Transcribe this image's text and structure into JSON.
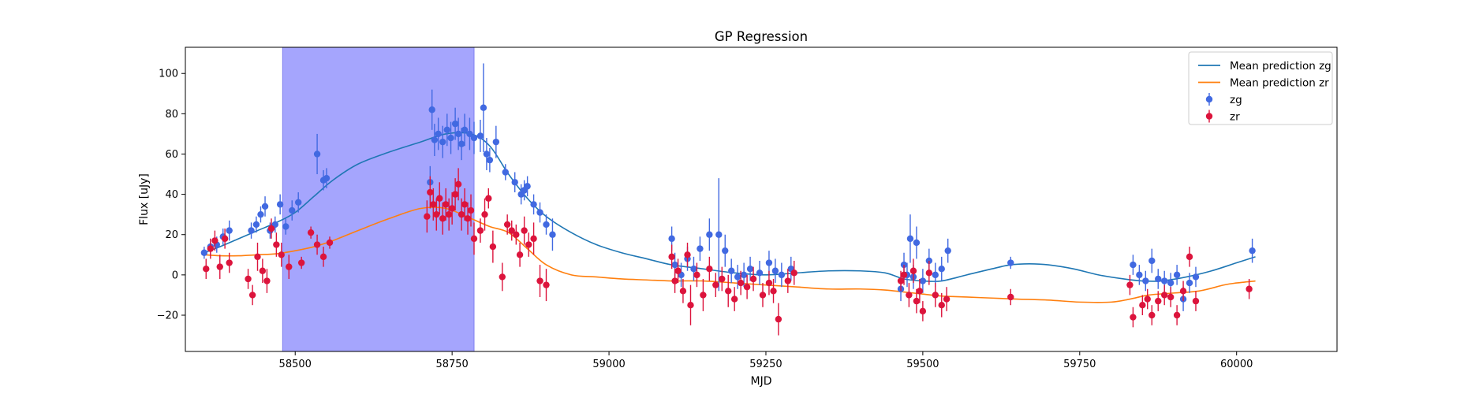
{
  "chart_data": {
    "type": "scatter",
    "title": "GP Regression",
    "xlabel": "MJD",
    "ylabel": "Flux [uJy]",
    "xlim": [
      58325,
      60160
    ],
    "ylim": [
      -38,
      113
    ],
    "xticks": [
      58500,
      58750,
      59000,
      59250,
      59500,
      59750,
      60000
    ],
    "yticks": [
      -20,
      0,
      20,
      40,
      60,
      80,
      100
    ],
    "grid": false,
    "legend_position": "upper-right",
    "highlight_span": {
      "x_start": 58480,
      "x_end": 58785,
      "color": "#a5a5fd"
    },
    "series": [
      {
        "name": "Mean prediction zg",
        "kind": "line",
        "color": "#1f77b4",
        "x": [
          58355,
          58380,
          58410,
          58440,
          58470,
          58500,
          58530,
          58560,
          58600,
          58650,
          58700,
          58740,
          58780,
          58810,
          58840,
          58870,
          58900,
          58940,
          58980,
          59020,
          59060,
          59100,
          59150,
          59200,
          59250,
          59300,
          59350,
          59400,
          59440,
          59470,
          59500,
          59530,
          59570,
          59610,
          59640,
          59670,
          59700,
          59740,
          59780,
          59820,
          59850,
          59880,
          59920,
          59960,
          60000,
          60030
        ],
        "y": [
          11,
          14,
          18,
          22,
          26,
          31,
          39,
          47,
          55,
          61,
          66,
          70,
          70,
          64,
          50,
          38,
          29,
          21,
          15,
          11,
          8,
          5,
          3,
          1,
          0,
          1,
          2,
          2,
          1,
          -2,
          -3,
          -3,
          0,
          3,
          5,
          5.5,
          5,
          3,
          0,
          -2,
          -3,
          -3,
          -1,
          2,
          6,
          9
        ]
      },
      {
        "name": "Mean prediction zr",
        "kind": "line",
        "color": "#ff7f0e",
        "x": [
          58355,
          58380,
          58410,
          58440,
          58470,
          58500,
          58530,
          58560,
          58600,
          58650,
          58700,
          58740,
          58780,
          58810,
          58840,
          58870,
          58900,
          58940,
          58980,
          59020,
          59060,
          59100,
          59150,
          59200,
          59250,
          59300,
          59350,
          59400,
          59440,
          59470,
          59500,
          59530,
          59570,
          59610,
          59650,
          59700,
          59750,
          59800,
          59830,
          59860,
          59900,
          59940,
          59980,
          60000,
          60030
        ],
        "y": [
          10,
          9.5,
          9.5,
          10,
          10.5,
          12,
          14,
          17,
          22,
          28,
          33,
          33,
          28,
          24,
          21,
          13,
          5,
          0,
          -1,
          -2,
          -2.5,
          -3,
          -3,
          -4,
          -5,
          -6,
          -7,
          -7,
          -7.5,
          -8.5,
          -9.5,
          -10.5,
          -11,
          -11.5,
          -12,
          -12.5,
          -13.5,
          -13.5,
          -12,
          -10,
          -9,
          -8,
          -5,
          -4,
          -3
        ]
      },
      {
        "name": "zg",
        "kind": "errorbar",
        "color": "#4169e1",
        "x": [
          58355,
          58365,
          58375,
          58385,
          58395,
          58430,
          58438,
          58445,
          58452,
          58460,
          58468,
          58476,
          58485,
          58495,
          58505,
          58535,
          58545,
          58550,
          58715,
          58718,
          58722,
          58728,
          58735,
          58742,
          58748,
          58755,
          58760,
          58765,
          58770,
          58778,
          58785,
          58795,
          58800,
          58805,
          58810,
          58820,
          58835,
          58850,
          58860,
          58865,
          58870,
          58880,
          58890,
          58900,
          58910,
          59100,
          59105,
          59115,
          59125,
          59135,
          59145,
          59160,
          59175,
          59185,
          59195,
          59205,
          59215,
          59225,
          59240,
          59255,
          59265,
          59275,
          59290,
          59465,
          59470,
          59475,
          59480,
          59485,
          59490,
          59500,
          59510,
          59520,
          59530,
          59540,
          59640,
          59835,
          59845,
          59855,
          59865,
          59875,
          59885,
          59895,
          59905,
          59915,
          59925,
          59935,
          60025
        ],
        "y": [
          11,
          14,
          15,
          19,
          22,
          22,
          25,
          30,
          34,
          22,
          25,
          35,
          24,
          32,
          36,
          60,
          47,
          48,
          46,
          82,
          67,
          70,
          66,
          72,
          68,
          75,
          70,
          65,
          72,
          70,
          68,
          69,
          83,
          60,
          57,
          66,
          51,
          46,
          40,
          42,
          44,
          35,
          31,
          25,
          20,
          18,
          5,
          0,
          8,
          3,
          13,
          20,
          20,
          12,
          2,
          -1,
          0,
          3,
          1,
          6,
          2,
          0,
          3,
          -7,
          5,
          0,
          18,
          -1,
          16,
          -3,
          7,
          0,
          3,
          12,
          6,
          5,
          0,
          -3,
          7,
          -2,
          -3,
          -4,
          0,
          -12,
          -4,
          -1,
          12
        ],
        "yerr": [
          3,
          4,
          4,
          4,
          5,
          4,
          4,
          4,
          5,
          4,
          4,
          5,
          4,
          5,
          5,
          10,
          5,
          5,
          8,
          10,
          8,
          8,
          8,
          8,
          8,
          8,
          8,
          8,
          8,
          8,
          8,
          8,
          22,
          8,
          6,
          8,
          4,
          5,
          5,
          5,
          5,
          5,
          5,
          5,
          8,
          6,
          6,
          6,
          6,
          6,
          6,
          8,
          28,
          8,
          6,
          6,
          6,
          6,
          6,
          6,
          6,
          6,
          6,
          6,
          6,
          6,
          12,
          6,
          8,
          6,
          6,
          6,
          6,
          6,
          3,
          5,
          5,
          5,
          6,
          5,
          5,
          5,
          5,
          6,
          5,
          5,
          6
        ]
      },
      {
        "name": "zr",
        "kind": "errorbar",
        "color": "#dc143c",
        "x": [
          58358,
          58365,
          58372,
          58380,
          58388,
          58395,
          58425,
          58432,
          58440,
          58448,
          58455,
          58462,
          58470,
          58478,
          58490,
          58510,
          58525,
          58535,
          58545,
          58555,
          58710,
          58715,
          58720,
          58725,
          58730,
          58735,
          58740,
          58745,
          58750,
          58755,
          58760,
          58765,
          58770,
          58775,
          58780,
          58785,
          58795,
          58802,
          58808,
          58815,
          58830,
          58838,
          58845,
          58852,
          58858,
          58865,
          58872,
          58880,
          58890,
          58900,
          59100,
          59105,
          59110,
          59118,
          59125,
          59130,
          59140,
          59150,
          59160,
          59170,
          59180,
          59190,
          59200,
          59210,
          59220,
          59230,
          59245,
          59255,
          59262,
          59270,
          59285,
          59295,
          59465,
          59470,
          59478,
          59485,
          59490,
          59495,
          59500,
          59510,
          59520,
          59530,
          59538,
          59640,
          59830,
          59835,
          59850,
          59858,
          59865,
          59875,
          59885,
          59895,
          59905,
          59915,
          59925,
          59935,
          60020
        ],
        "y": [
          3,
          13,
          17,
          4,
          18,
          6,
          -2,
          -10,
          9,
          2,
          -3,
          23,
          15,
          10,
          4,
          6,
          21,
          15,
          9,
          16,
          29,
          41,
          35,
          30,
          38,
          28,
          35,
          30,
          33,
          40,
          45,
          30,
          35,
          28,
          32,
          18,
          22,
          30,
          38,
          14,
          -1,
          25,
          22,
          20,
          10,
          22,
          15,
          18,
          -3,
          -5,
          9,
          -3,
          2,
          -8,
          10,
          -15,
          0,
          -10,
          3,
          -5,
          -2,
          -8,
          -12,
          -4,
          -6,
          -2,
          -10,
          -4,
          -8,
          -22,
          -3,
          1,
          -3,
          0,
          -10,
          2,
          -13,
          -8,
          -18,
          1,
          -10,
          -15,
          -12,
          -11,
          -5,
          -21,
          -15,
          -12,
          -20,
          -13,
          -10,
          -11,
          -20,
          -8,
          9,
          -13,
          -7
        ],
        "yerr": [
          5,
          5,
          5,
          6,
          5,
          5,
          5,
          5,
          7,
          6,
          6,
          5,
          6,
          6,
          6,
          3,
          3,
          5,
          5,
          3,
          8,
          8,
          8,
          8,
          8,
          8,
          8,
          8,
          8,
          8,
          8,
          8,
          8,
          8,
          8,
          8,
          6,
          8,
          5,
          8,
          7,
          5,
          5,
          5,
          6,
          7,
          6,
          8,
          8,
          8,
          6,
          6,
          6,
          6,
          6,
          10,
          6,
          8,
          6,
          6,
          6,
          8,
          6,
          6,
          6,
          6,
          6,
          6,
          6,
          8,
          6,
          6,
          5,
          5,
          6,
          6,
          6,
          6,
          5,
          6,
          6,
          6,
          6,
          4,
          5,
          5,
          5,
          5,
          5,
          5,
          5,
          5,
          5,
          5,
          5,
          5,
          5
        ]
      }
    ]
  }
}
